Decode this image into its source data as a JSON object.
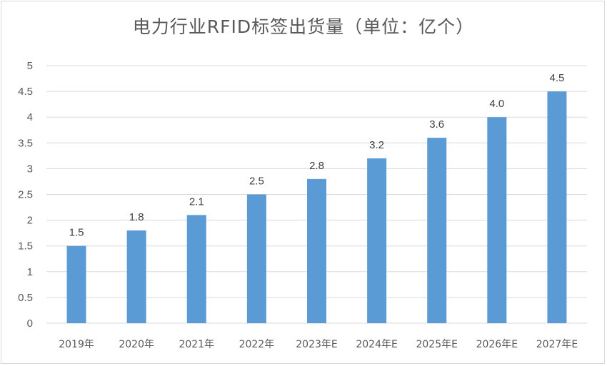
{
  "chart_data": {
    "type": "bar",
    "title": "电力行业RFID标签出货量（单位：亿个）",
    "categories": [
      "2019年",
      "2020年",
      "2021年",
      "2022年",
      "2023年E",
      "2024年E",
      "2025年E",
      "2026年E",
      "2027年E"
    ],
    "values": [
      1.5,
      1.8,
      2.1,
      2.5,
      2.8,
      3.2,
      3.6,
      4.0,
      4.5
    ],
    "value_labels": [
      "1.5",
      "1.8",
      "2.1",
      "2.5",
      "2.8",
      "3.2",
      "3.6",
      "4.0",
      "4.5"
    ],
    "ylim": [
      0,
      5
    ],
    "yticks": [
      "0",
      "0.5",
      "1",
      "1.5",
      "2",
      "2.5",
      "3",
      "3.5",
      "4",
      "4.5",
      "5"
    ],
    "xlabel": "",
    "ylabel": "",
    "grid": true,
    "legend": "none",
    "bar_color": "#5b9bd5",
    "grid_color": "#d9d9d9"
  }
}
